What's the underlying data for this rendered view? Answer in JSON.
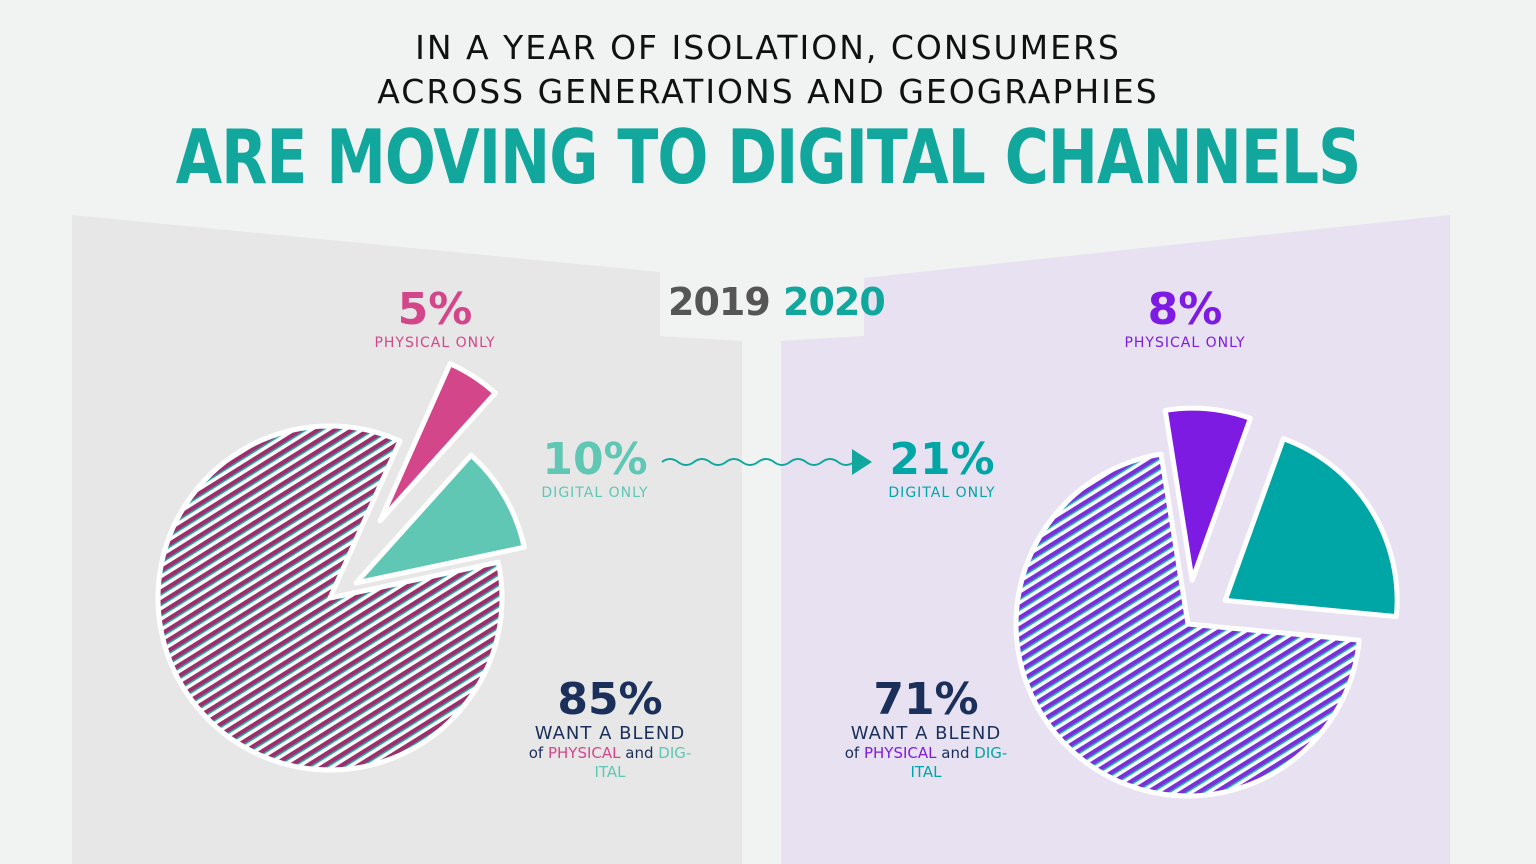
{
  "title": {
    "line1": "IN A YEAR OF ISOLATION, CONSUMERS",
    "line2": "ACROSS GENERATIONS AND GEOGRAPHIES",
    "line3": "ARE MOVING TO DIGITAL CHANNELS"
  },
  "colors": {
    "teal_title": "#12a79d",
    "pink": "#d3478a",
    "mint": "#5fc7b4",
    "teal": "#00a6a6",
    "purple": "#7e1be3",
    "navy": "#1a2f5a",
    "grey_year": "#555555",
    "left_panel": "#e7e7e7",
    "right_panel": "#e8e1f1"
  },
  "years": {
    "left": "2019",
    "right": "2020"
  },
  "arrow": {
    "icon": "wavy-arrow-icon"
  },
  "chart_data": [
    {
      "type": "pie",
      "year": "2019",
      "slices": [
        {
          "label": "PHYSICAL ONLY",
          "value": 5,
          "display": "5%",
          "color": "#d3478a",
          "exploded": true
        },
        {
          "label": "DIGITAL ONLY",
          "value": 10,
          "display": "10%",
          "color": "#5fc7b4",
          "exploded": true
        },
        {
          "label": "WANT A BLEND",
          "value": 85,
          "display": "85%",
          "color": "#a0366c",
          "pattern": "hatched"
        }
      ],
      "blend_caption": {
        "of": "of",
        "physical": "PHYSICAL",
        "and": "and",
        "dig": "DIG-",
        "ital": "ITAL"
      }
    },
    {
      "type": "pie",
      "year": "2020",
      "slices": [
        {
          "label": "PHYSICAL ONLY",
          "value": 8,
          "display": "8%",
          "color": "#7e1be3",
          "exploded": true
        },
        {
          "label": "DIGITAL ONLY",
          "value": 21,
          "display": "21%",
          "color": "#00a6a6",
          "exploded": true
        },
        {
          "label": "WANT A BLEND",
          "value": 71,
          "display": "71%",
          "color": "#8a3ad6",
          "pattern": "hatched"
        }
      ],
      "blend_caption": {
        "of": "of",
        "physical": "PHYSICAL",
        "and": "and",
        "dig": "DIG-",
        "ital": "ITAL"
      }
    }
  ]
}
